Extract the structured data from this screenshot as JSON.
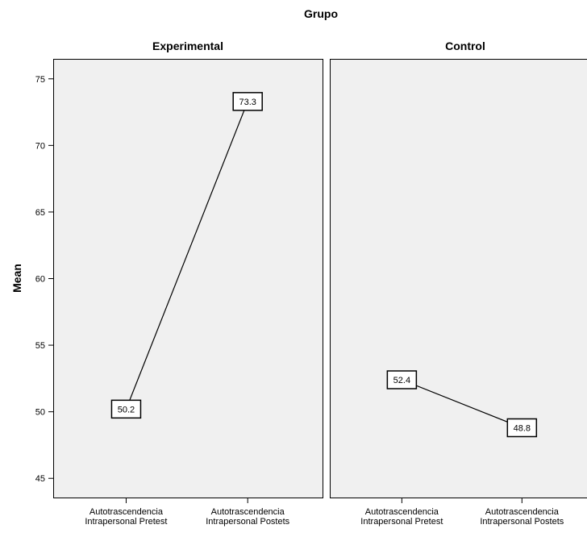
{
  "chart_data": {
    "type": "line",
    "title": "Grupo",
    "ylabel": "Mean",
    "ylim": [
      43.5,
      76.5
    ],
    "yticks": [
      45,
      50,
      55,
      60,
      65,
      70,
      75
    ],
    "categories": [
      [
        "Autotrascendencia",
        "Intrapersonal Pretest"
      ],
      [
        "Autotrascendencia",
        "Intrapersonal Postets"
      ]
    ],
    "panels": [
      {
        "name": "Experimental",
        "values": [
          50.2,
          73.3
        ],
        "labels": [
          "50.2",
          "73.3"
        ]
      },
      {
        "name": "Control",
        "values": [
          52.4,
          48.8
        ],
        "labels": [
          "52.4",
          "48.8"
        ]
      }
    ],
    "grid": false,
    "colors": {
      "panel_bg": "#f0f0f0",
      "line": "#000000",
      "border": "#000000"
    }
  }
}
